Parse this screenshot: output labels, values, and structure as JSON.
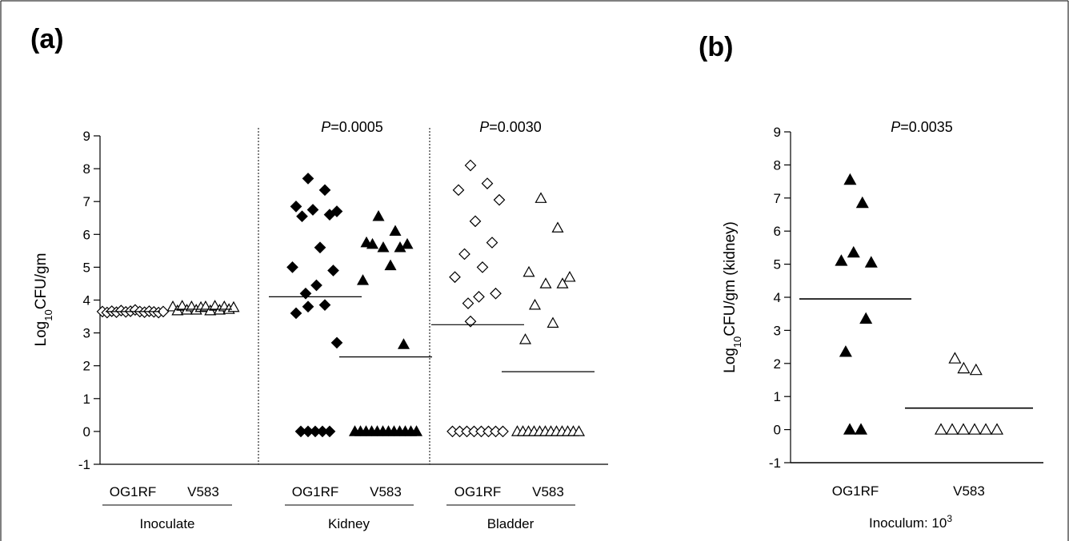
{
  "panel_a": {
    "label": "(a)",
    "ylabel_main": "Log",
    "ylabel_sub": "10",
    "ylabel_rest": "CFU/gm",
    "groups": [
      {
        "name": "Inoculate",
        "strains": [
          "OG1RF",
          "V583"
        ]
      },
      {
        "name": "Kidney",
        "strains": [
          "OG1RF",
          "V583"
        ],
        "p_prefix": "P",
        "p_value": "=0.0005"
      },
      {
        "name": "Bladder",
        "strains": [
          "OG1RF",
          "V583"
        ],
        "p_prefix": "P",
        "p_value": "=0.0030"
      }
    ]
  },
  "panel_b": {
    "label": "(b)",
    "ylabel_main": "Log",
    "ylabel_sub": "10",
    "ylabel_rest": "CFU/gm (kidney)",
    "strains": [
      "OG1RF",
      "V583"
    ],
    "p_prefix": "P",
    "p_value": "=0.0035",
    "inoculum_text": "Inoculum: 10",
    "inoculum_sup": "3"
  },
  "chart_data": [
    {
      "type": "scatter",
      "title": "(a)",
      "ylabel": "Log10 CFU/gm",
      "ylim": [
        -1,
        9
      ],
      "yticks": [
        "9",
        "8",
        "7",
        "6",
        "5",
        "4",
        "3",
        "2",
        "1",
        "0",
        "-1"
      ],
      "grid": false,
      "series": [
        {
          "group": "Inoculate",
          "strain": "OG1RF",
          "marker": "diamond-open",
          "values": [
            3.65,
            3.62,
            3.66,
            3.63,
            3.68,
            3.64,
            3.66,
            3.7,
            3.65,
            3.63,
            3.66,
            3.64,
            3.62,
            3.65
          ],
          "median": 3.65
        },
        {
          "group": "Inoculate",
          "strain": "V583",
          "marker": "triangle-open",
          "values": [
            3.8,
            3.68,
            3.82,
            3.7,
            3.8,
            3.7,
            3.78,
            3.8,
            3.68,
            3.82,
            3.7,
            3.8,
            3.72,
            3.78
          ],
          "median": 3.72
        },
        {
          "group": "Kidney",
          "strain": "OG1RF",
          "marker": "diamond-filled",
          "values": [
            7.7,
            7.35,
            6.85,
            6.7,
            6.75,
            6.6,
            6.55,
            5.6,
            5.0,
            4.9,
            4.45,
            4.2,
            3.8,
            3.85,
            3.6,
            2.7,
            0,
            0,
            0,
            0,
            0
          ],
          "median": 4.1
        },
        {
          "group": "Kidney",
          "strain": "V583",
          "marker": "triangle-filled",
          "values": [
            6.55,
            6.1,
            5.75,
            5.7,
            5.6,
            5.6,
            5.7,
            5.05,
            4.6,
            2.65,
            0,
            0,
            0,
            0,
            0,
            0,
            0,
            0,
            0,
            0,
            0,
            0
          ],
          "median": 2.27
        },
        {
          "group": "Bladder",
          "strain": "OG1RF",
          "marker": "diamond-open",
          "values": [
            8.1,
            7.55,
            7.35,
            7.05,
            6.4,
            5.75,
            5.4,
            5.0,
            4.7,
            4.2,
            4.1,
            3.9,
            3.35,
            0,
            0,
            0,
            0,
            0,
            0,
            0,
            0
          ],
          "median": 3.25
        },
        {
          "group": "Bladder",
          "strain": "V583",
          "marker": "triangle-open",
          "values": [
            7.1,
            6.2,
            4.85,
            4.7,
            4.5,
            4.5,
            3.85,
            3.3,
            2.8,
            0,
            0,
            0,
            0,
            0,
            0,
            0,
            0,
            0,
            0,
            0,
            0
          ],
          "median": 1.82
        }
      ],
      "annotations": [
        "P =0.0005",
        "P =0.0030"
      ]
    },
    {
      "type": "scatter",
      "title": "(b)",
      "ylabel": "Log10 CFU/gm (kidney)",
      "xlabel": "Inoculum: 10^3",
      "categories": [
        "OG1RF",
        "V583"
      ],
      "ylim": [
        -1,
        9
      ],
      "yticks": [
        "9",
        "8",
        "7",
        "6",
        "5",
        "4",
        "3",
        "2",
        "1",
        "0",
        "-1"
      ],
      "grid": false,
      "series": [
        {
          "strain": "OG1RF",
          "marker": "triangle-filled",
          "values": [
            7.55,
            6.85,
            5.1,
            5.05,
            5.35,
            3.35,
            2.35,
            0,
            0
          ],
          "median": 3.95
        },
        {
          "strain": "V583",
          "marker": "triangle-open",
          "values": [
            1.85,
            1.8,
            2.15,
            0,
            0,
            0,
            0,
            0,
            0
          ],
          "median": 0.65
        }
      ],
      "annotations": [
        "P =0.0035"
      ]
    }
  ]
}
